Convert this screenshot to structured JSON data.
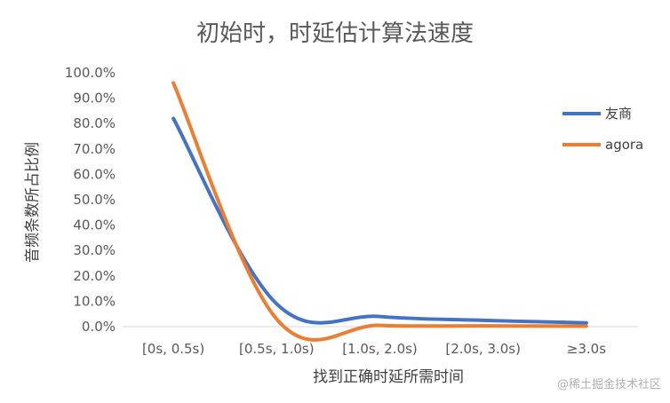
{
  "chart_data": {
    "type": "line",
    "title": "初始时，时延估计算法速度",
    "xlabel": "找到正确时延所需时间",
    "ylabel": "音频条数所占比例",
    "categories": [
      "[0s, 0.5s)",
      "[0.5s, 1.0s)",
      "[1.0s, 2.0s)",
      "[2.0s, 3.0s)",
      "≥3.0s"
    ],
    "series": [
      {
        "name": "友商",
        "color": "#4472C4",
        "values": [
          82.0,
          9.0,
          4.0,
          2.5,
          1.5
        ]
      },
      {
        "name": "agora",
        "color": "#ED7D31",
        "values": [
          96.0,
          3.0,
          0.5,
          0.3,
          0.2
        ]
      }
    ],
    "yticks": [
      "0.0%",
      "10.0%",
      "20.0%",
      "30.0%",
      "40.0%",
      "50.0%",
      "60.0%",
      "70.0%",
      "80.0%",
      "90.0%",
      "100.0%"
    ],
    "ylim": [
      0,
      100
    ],
    "grid": false,
    "legend": "right"
  },
  "watermark": "@稀土掘金技术社区"
}
